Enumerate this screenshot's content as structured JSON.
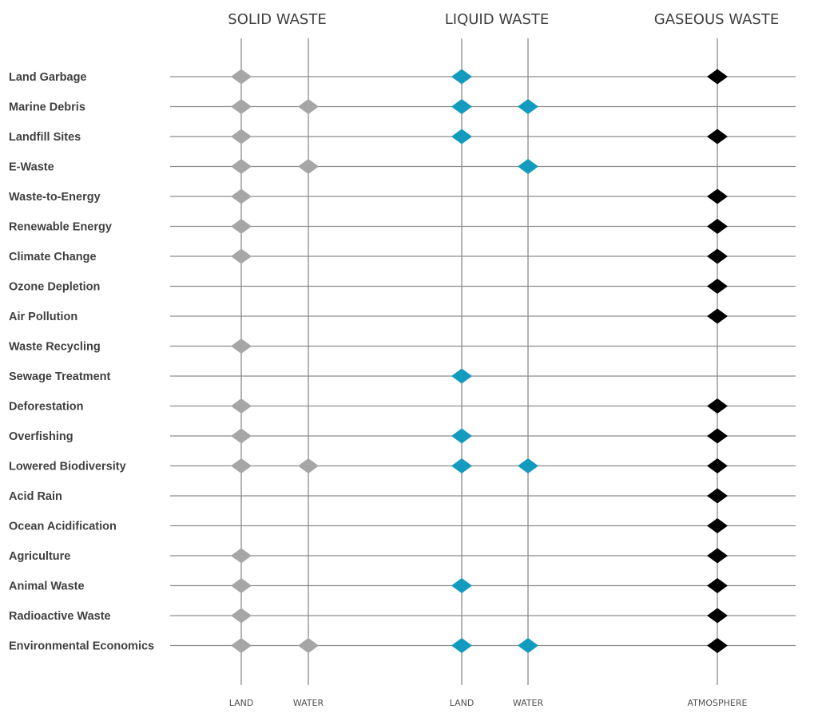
{
  "chart_data": {
    "type": "matrix",
    "title": "",
    "groups": [
      {
        "label": "SOLID WASTE",
        "columns": [
          "LAND",
          "WATER"
        ],
        "color": "#a6a6a6"
      },
      {
        "label": "LIQUID WASTE",
        "columns": [
          "LAND",
          "WATER"
        ],
        "color": "#139bbf"
      },
      {
        "label": "GASEOUS WASTE",
        "columns": [
          "ATMOSPHERE"
        ],
        "color": "#000000"
      }
    ],
    "columns": [
      "Solid-Land",
      "Solid-Water",
      "Liquid-Land",
      "Liquid-Water",
      "Gaseous-Atmosphere"
    ],
    "rows": [
      {
        "label": "Land Garbage",
        "values": [
          1,
          0,
          1,
          0,
          1
        ]
      },
      {
        "label": "Marine Debris",
        "values": [
          1,
          1,
          1,
          1,
          0
        ]
      },
      {
        "label": "Landfill Sites",
        "values": [
          1,
          0,
          1,
          0,
          1
        ]
      },
      {
        "label": "E-Waste",
        "values": [
          1,
          1,
          0,
          1,
          0
        ]
      },
      {
        "label": "Waste-to-Energy",
        "values": [
          1,
          0,
          0,
          0,
          1
        ]
      },
      {
        "label": "Renewable Energy",
        "values": [
          1,
          0,
          0,
          0,
          1
        ]
      },
      {
        "label": "Climate Change",
        "values": [
          1,
          0,
          0,
          0,
          1
        ]
      },
      {
        "label": "Ozone Depletion",
        "values": [
          0,
          0,
          0,
          0,
          1
        ]
      },
      {
        "label": "Air Pollution",
        "values": [
          0,
          0,
          0,
          0,
          1
        ]
      },
      {
        "label": "Waste Recycling",
        "values": [
          1,
          0,
          0,
          0,
          0
        ]
      },
      {
        "label": "Sewage Treatment",
        "values": [
          0,
          0,
          1,
          0,
          0
        ]
      },
      {
        "label": "Deforestation",
        "values": [
          1,
          0,
          0,
          0,
          1
        ]
      },
      {
        "label": "Overfishing",
        "values": [
          1,
          0,
          1,
          0,
          1
        ]
      },
      {
        "label": "Lowered Biodiversity",
        "values": [
          1,
          1,
          1,
          1,
          1
        ]
      },
      {
        "label": "Acid Rain",
        "values": [
          0,
          0,
          0,
          0,
          1
        ]
      },
      {
        "label": "Ocean Acidification",
        "values": [
          0,
          0,
          0,
          0,
          1
        ]
      },
      {
        "label": "Agriculture",
        "values": [
          1,
          0,
          0,
          0,
          1
        ]
      },
      {
        "label": "Animal Waste",
        "values": [
          1,
          0,
          1,
          0,
          1
        ]
      },
      {
        "label": "Radioactive Waste",
        "values": [
          1,
          0,
          0,
          0,
          1
        ]
      },
      {
        "label": "Environmental Economics",
        "values": [
          1,
          1,
          1,
          1,
          1
        ]
      }
    ],
    "line_color": "#8c8c8c"
  }
}
